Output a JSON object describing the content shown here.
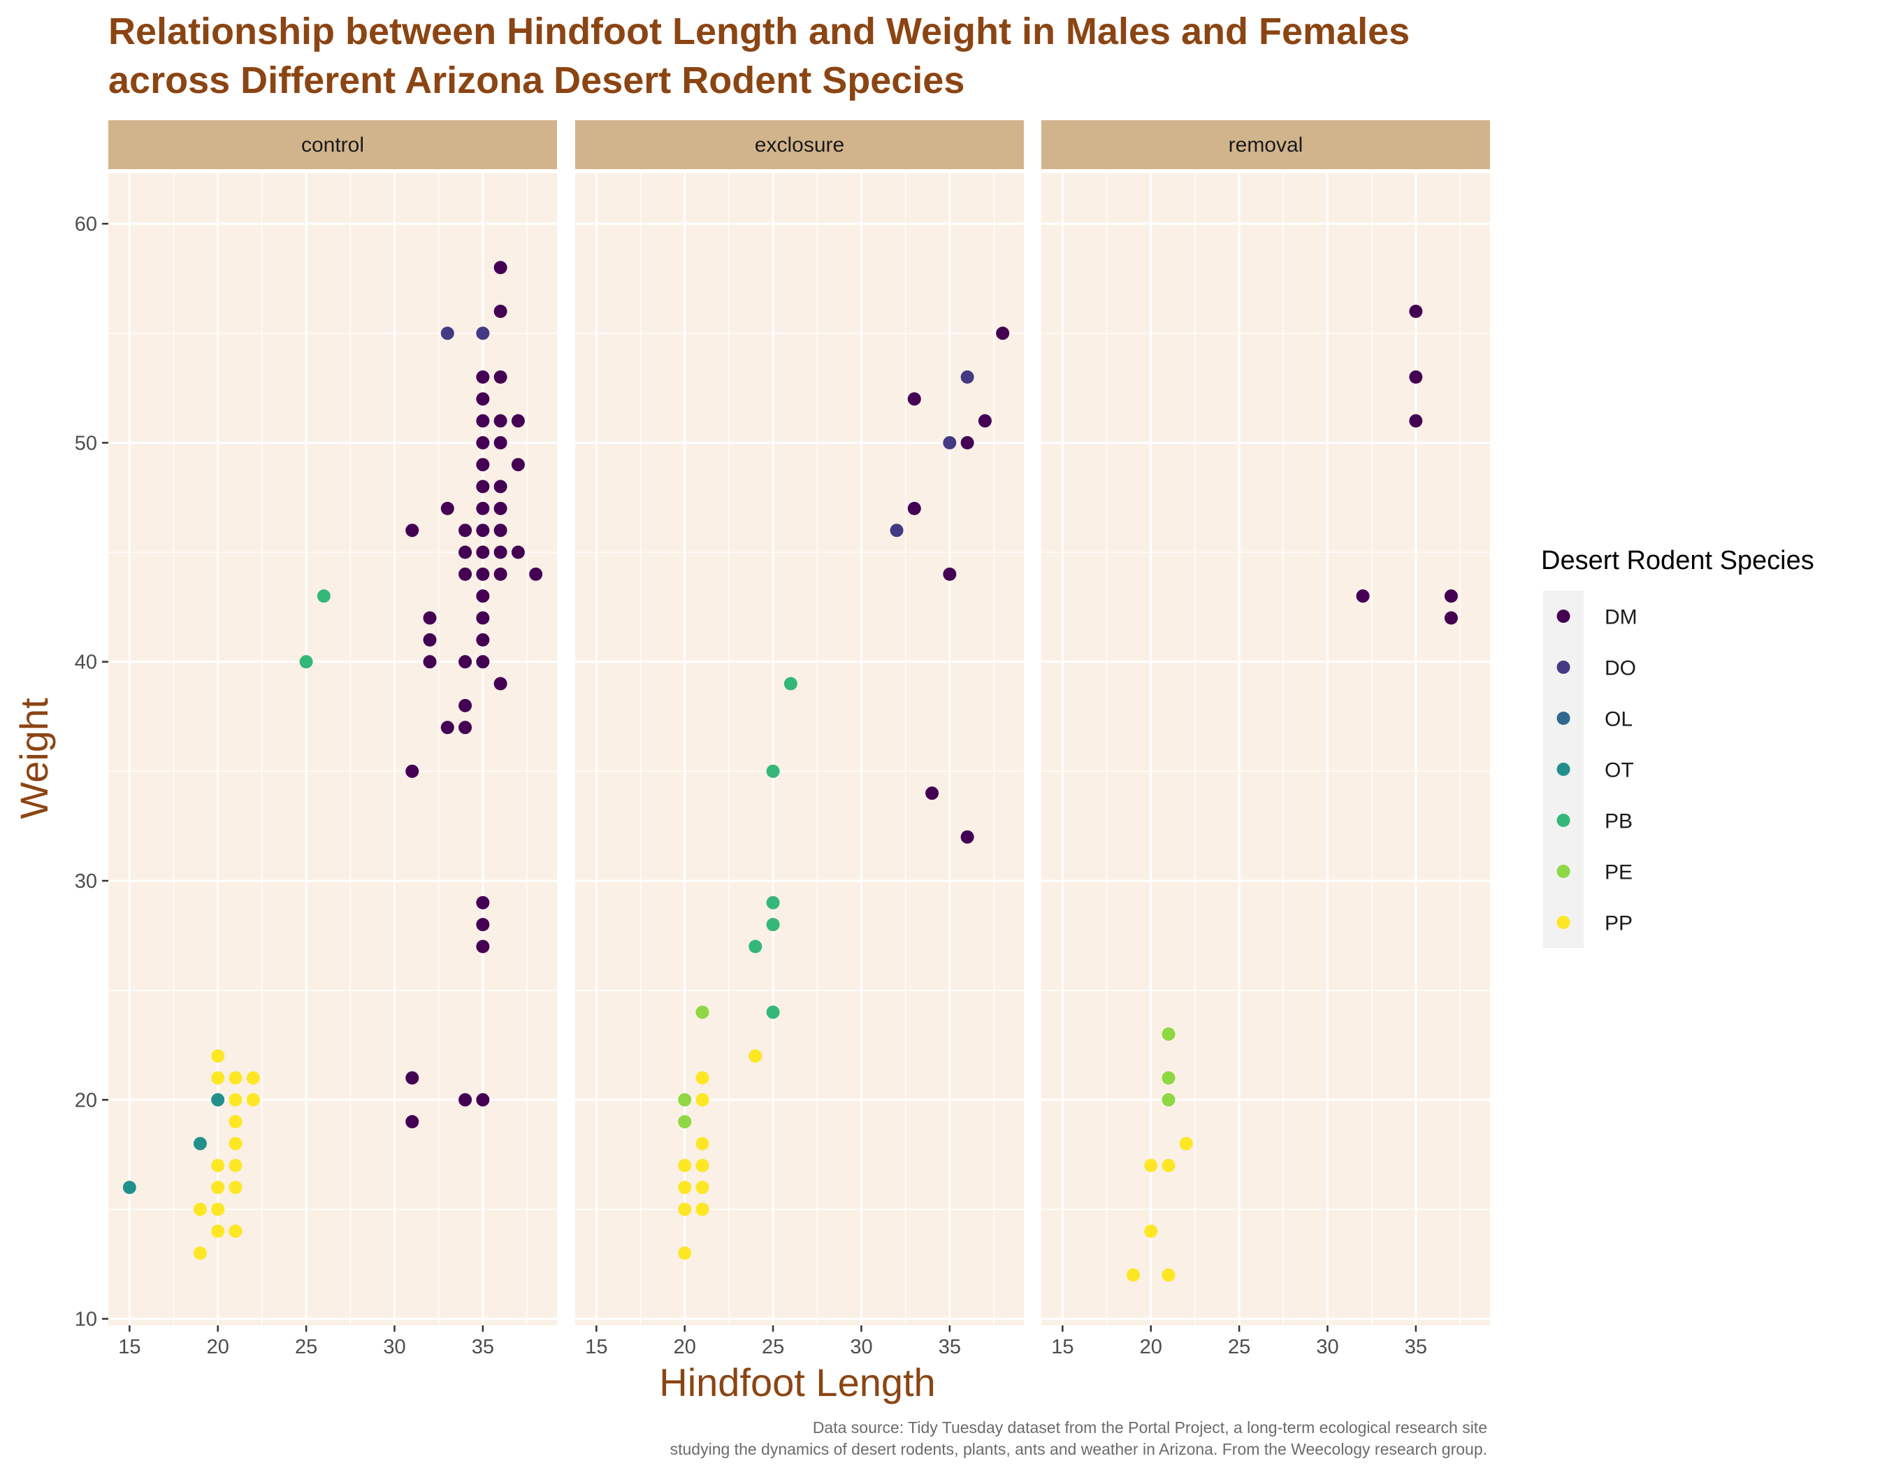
{
  "colors": {
    "title": "#8B4513",
    "panel_bg": "#FAF0E6",
    "strip_bg": "#D2B48C",
    "grid": "#ffffff",
    "legend_key_bg": "#F2F2F2"
  },
  "chart_data": {
    "type": "scatter",
    "title_lines": [
      "Relationship between Hindfoot Length and Weight in Males and Females",
      "across Different Arizona Desert Rodent Species"
    ],
    "xlabel": "Hindfoot Length",
    "ylabel": "Weight",
    "xlim": [
      13.8,
      39.2
    ],
    "ylim": [
      9.7,
      62.3
    ],
    "x_ticks": [
      15,
      20,
      25,
      30,
      35
    ],
    "y_ticks": [
      10,
      20,
      30,
      40,
      50,
      60
    ],
    "grid": true,
    "legend": {
      "title": "Desert Rodent Species",
      "position": "right",
      "entries": [
        {
          "label": "DM",
          "color": "#440154"
        },
        {
          "label": "DO",
          "color": "#443A83"
        },
        {
          "label": "OL",
          "color": "#31688E"
        },
        {
          "label": "OT",
          "color": "#21908C"
        },
        {
          "label": "PB",
          "color": "#35B779"
        },
        {
          "label": "PE",
          "color": "#8FD744"
        },
        {
          "label": "PP",
          "color": "#FDE725"
        }
      ]
    },
    "facets": [
      {
        "label": "control",
        "points": [
          [
            "DM",
            36,
            58
          ],
          [
            "DM",
            36,
            56
          ],
          [
            "DO",
            33,
            55
          ],
          [
            "DO",
            35,
            55
          ],
          [
            "DM",
            35,
            53
          ],
          [
            "DM",
            36,
            53
          ],
          [
            "DM",
            35,
            52
          ],
          [
            "DM",
            35,
            51
          ],
          [
            "DM",
            36,
            51
          ],
          [
            "DM",
            37,
            51
          ],
          [
            "DM",
            35,
            50
          ],
          [
            "DM",
            36,
            50
          ],
          [
            "DM",
            35,
            49
          ],
          [
            "DM",
            37,
            49
          ],
          [
            "DM",
            35,
            48
          ],
          [
            "DM",
            36,
            48
          ],
          [
            "DM",
            33,
            47
          ],
          [
            "DM",
            35,
            47
          ],
          [
            "DM",
            36,
            47
          ],
          [
            "DM",
            31,
            46
          ],
          [
            "DM",
            34,
            46
          ],
          [
            "DM",
            35,
            46
          ],
          [
            "DM",
            36,
            46
          ],
          [
            "DM",
            34,
            45
          ],
          [
            "DM",
            35,
            45
          ],
          [
            "DM",
            36,
            45
          ],
          [
            "DM",
            37,
            45
          ],
          [
            "DM",
            34,
            44
          ],
          [
            "DM",
            35,
            44
          ],
          [
            "DM",
            36,
            44
          ],
          [
            "DM",
            38,
            44
          ],
          [
            "DM",
            35,
            43
          ],
          [
            "DM",
            32,
            42
          ],
          [
            "DM",
            35,
            42
          ],
          [
            "DM",
            32,
            41
          ],
          [
            "DM",
            35,
            41
          ],
          [
            "DM",
            32,
            40
          ],
          [
            "DM",
            34,
            40
          ],
          [
            "DM",
            35,
            40
          ],
          [
            "DM",
            36,
            39
          ],
          [
            "DM",
            34,
            38
          ],
          [
            "DM",
            33,
            37
          ],
          [
            "DM",
            34,
            37
          ],
          [
            "DM",
            31,
            35
          ],
          [
            "DM",
            35,
            29
          ],
          [
            "DM",
            35,
            28
          ],
          [
            "DM",
            35,
            27
          ],
          [
            "DM",
            31,
            21
          ],
          [
            "DM",
            34,
            20
          ],
          [
            "DM",
            35,
            20
          ],
          [
            "DM",
            31,
            19
          ],
          [
            "PB",
            26,
            43
          ],
          [
            "PB",
            25,
            40
          ],
          [
            "OT",
            20,
            20
          ],
          [
            "OT",
            19,
            18
          ],
          [
            "OT",
            15,
            16
          ],
          [
            "PP",
            20,
            22
          ],
          [
            "PP",
            20,
            21
          ],
          [
            "PP",
            21,
            21
          ],
          [
            "PP",
            22,
            21
          ],
          [
            "PP",
            21,
            20
          ],
          [
            "PP",
            22,
            20
          ],
          [
            "PP",
            21,
            19
          ],
          [
            "PP",
            21,
            18
          ],
          [
            "PP",
            20,
            17
          ],
          [
            "PP",
            21,
            17
          ],
          [
            "PP",
            20,
            16
          ],
          [
            "PP",
            21,
            16
          ],
          [
            "PP",
            19,
            15
          ],
          [
            "PP",
            20,
            15
          ],
          [
            "PP",
            20,
            14
          ],
          [
            "PP",
            21,
            14
          ],
          [
            "PP",
            19,
            13
          ]
        ]
      },
      {
        "label": "exclosure",
        "points": [
          [
            "DM",
            38,
            55
          ],
          [
            "DO",
            36,
            53
          ],
          [
            "DM",
            33,
            52
          ],
          [
            "DM",
            37,
            51
          ],
          [
            "DO",
            35,
            50
          ],
          [
            "DM",
            36,
            50
          ],
          [
            "DM",
            33,
            47
          ],
          [
            "DO",
            32,
            46
          ],
          [
            "DM",
            35,
            44
          ],
          [
            "DM",
            34,
            34
          ],
          [
            "DM",
            36,
            32
          ],
          [
            "PB",
            26,
            39
          ],
          [
            "PB",
            25,
            35
          ],
          [
            "PB",
            25,
            29
          ],
          [
            "PB",
            25,
            28
          ],
          [
            "PB",
            24,
            27
          ],
          [
            "PB",
            25,
            24
          ],
          [
            "PE",
            21,
            24
          ],
          [
            "PE",
            20,
            20
          ],
          [
            "PE",
            20,
            19
          ],
          [
            "PP",
            24,
            22
          ],
          [
            "PP",
            21,
            21
          ],
          [
            "PP",
            21,
            20
          ],
          [
            "PP",
            21,
            18
          ],
          [
            "PP",
            20,
            17
          ],
          [
            "PP",
            21,
            17
          ],
          [
            "PP",
            20,
            16
          ],
          [
            "PP",
            21,
            16
          ],
          [
            "PP",
            20,
            15
          ],
          [
            "PP",
            21,
            15
          ],
          [
            "PP",
            20,
            13
          ]
        ]
      },
      {
        "label": "removal",
        "points": [
          [
            "DM",
            35,
            56
          ],
          [
            "DM",
            35,
            53
          ],
          [
            "DM",
            35,
            51
          ],
          [
            "DM",
            32,
            43
          ],
          [
            "DM",
            37,
            43
          ],
          [
            "DM",
            37,
            42
          ],
          [
            "PE",
            21,
            23
          ],
          [
            "PE",
            21,
            21
          ],
          [
            "PE",
            21,
            20
          ],
          [
            "PP",
            22,
            18
          ],
          [
            "PP",
            20,
            17
          ],
          [
            "PP",
            21,
            17
          ],
          [
            "PP",
            20,
            14
          ],
          [
            "PP",
            19,
            12
          ],
          [
            "PP",
            21,
            12
          ]
        ]
      }
    ],
    "caption_lines": [
      "Data source: Tidy Tuesday dataset from the Portal Project, a long-term ecological research site",
      "studying the dynamics of desert rodents, plants, ants and weather in Arizona. From the Weecology research group."
    ]
  }
}
